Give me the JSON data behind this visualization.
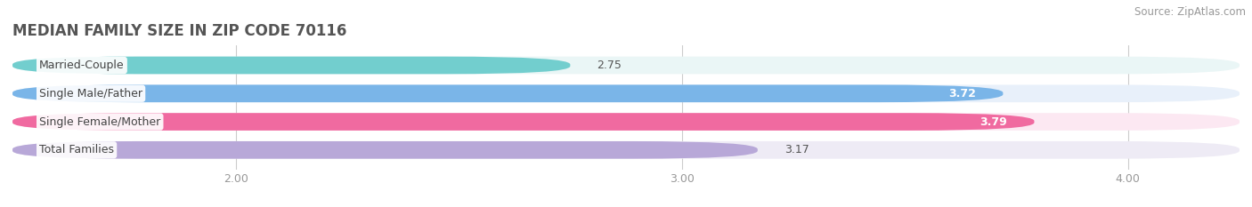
{
  "title": "MEDIAN FAMILY SIZE IN ZIP CODE 70116",
  "source": "Source: ZipAtlas.com",
  "categories": [
    "Married-Couple",
    "Single Male/Father",
    "Single Female/Mother",
    "Total Families"
  ],
  "values": [
    2.75,
    3.72,
    3.79,
    3.17
  ],
  "bar_colors": [
    "#72cece",
    "#7ab5e8",
    "#f06aa0",
    "#b8a8d8"
  ],
  "bar_bg_colors": [
    "#eaf6f6",
    "#e8f0fa",
    "#fce8f2",
    "#eeebf5"
  ],
  "xlim_min": 1.5,
  "xlim_max": 4.25,
  "xticks": [
    2.0,
    3.0,
    4.0
  ],
  "xtick_labels": [
    "2.00",
    "3.00",
    "4.00"
  ],
  "title_fontsize": 12,
  "label_fontsize": 9,
  "value_fontsize": 9,
  "source_fontsize": 8.5,
  "bar_height": 0.62,
  "background_color": "#ffffff",
  "grid_color": "#cccccc",
  "value_color_inside": "#ffffff",
  "value_color_outside": "#555555",
  "label_text_color": "#444444",
  "title_color": "#555555",
  "source_color": "#999999",
  "tick_color": "#999999"
}
